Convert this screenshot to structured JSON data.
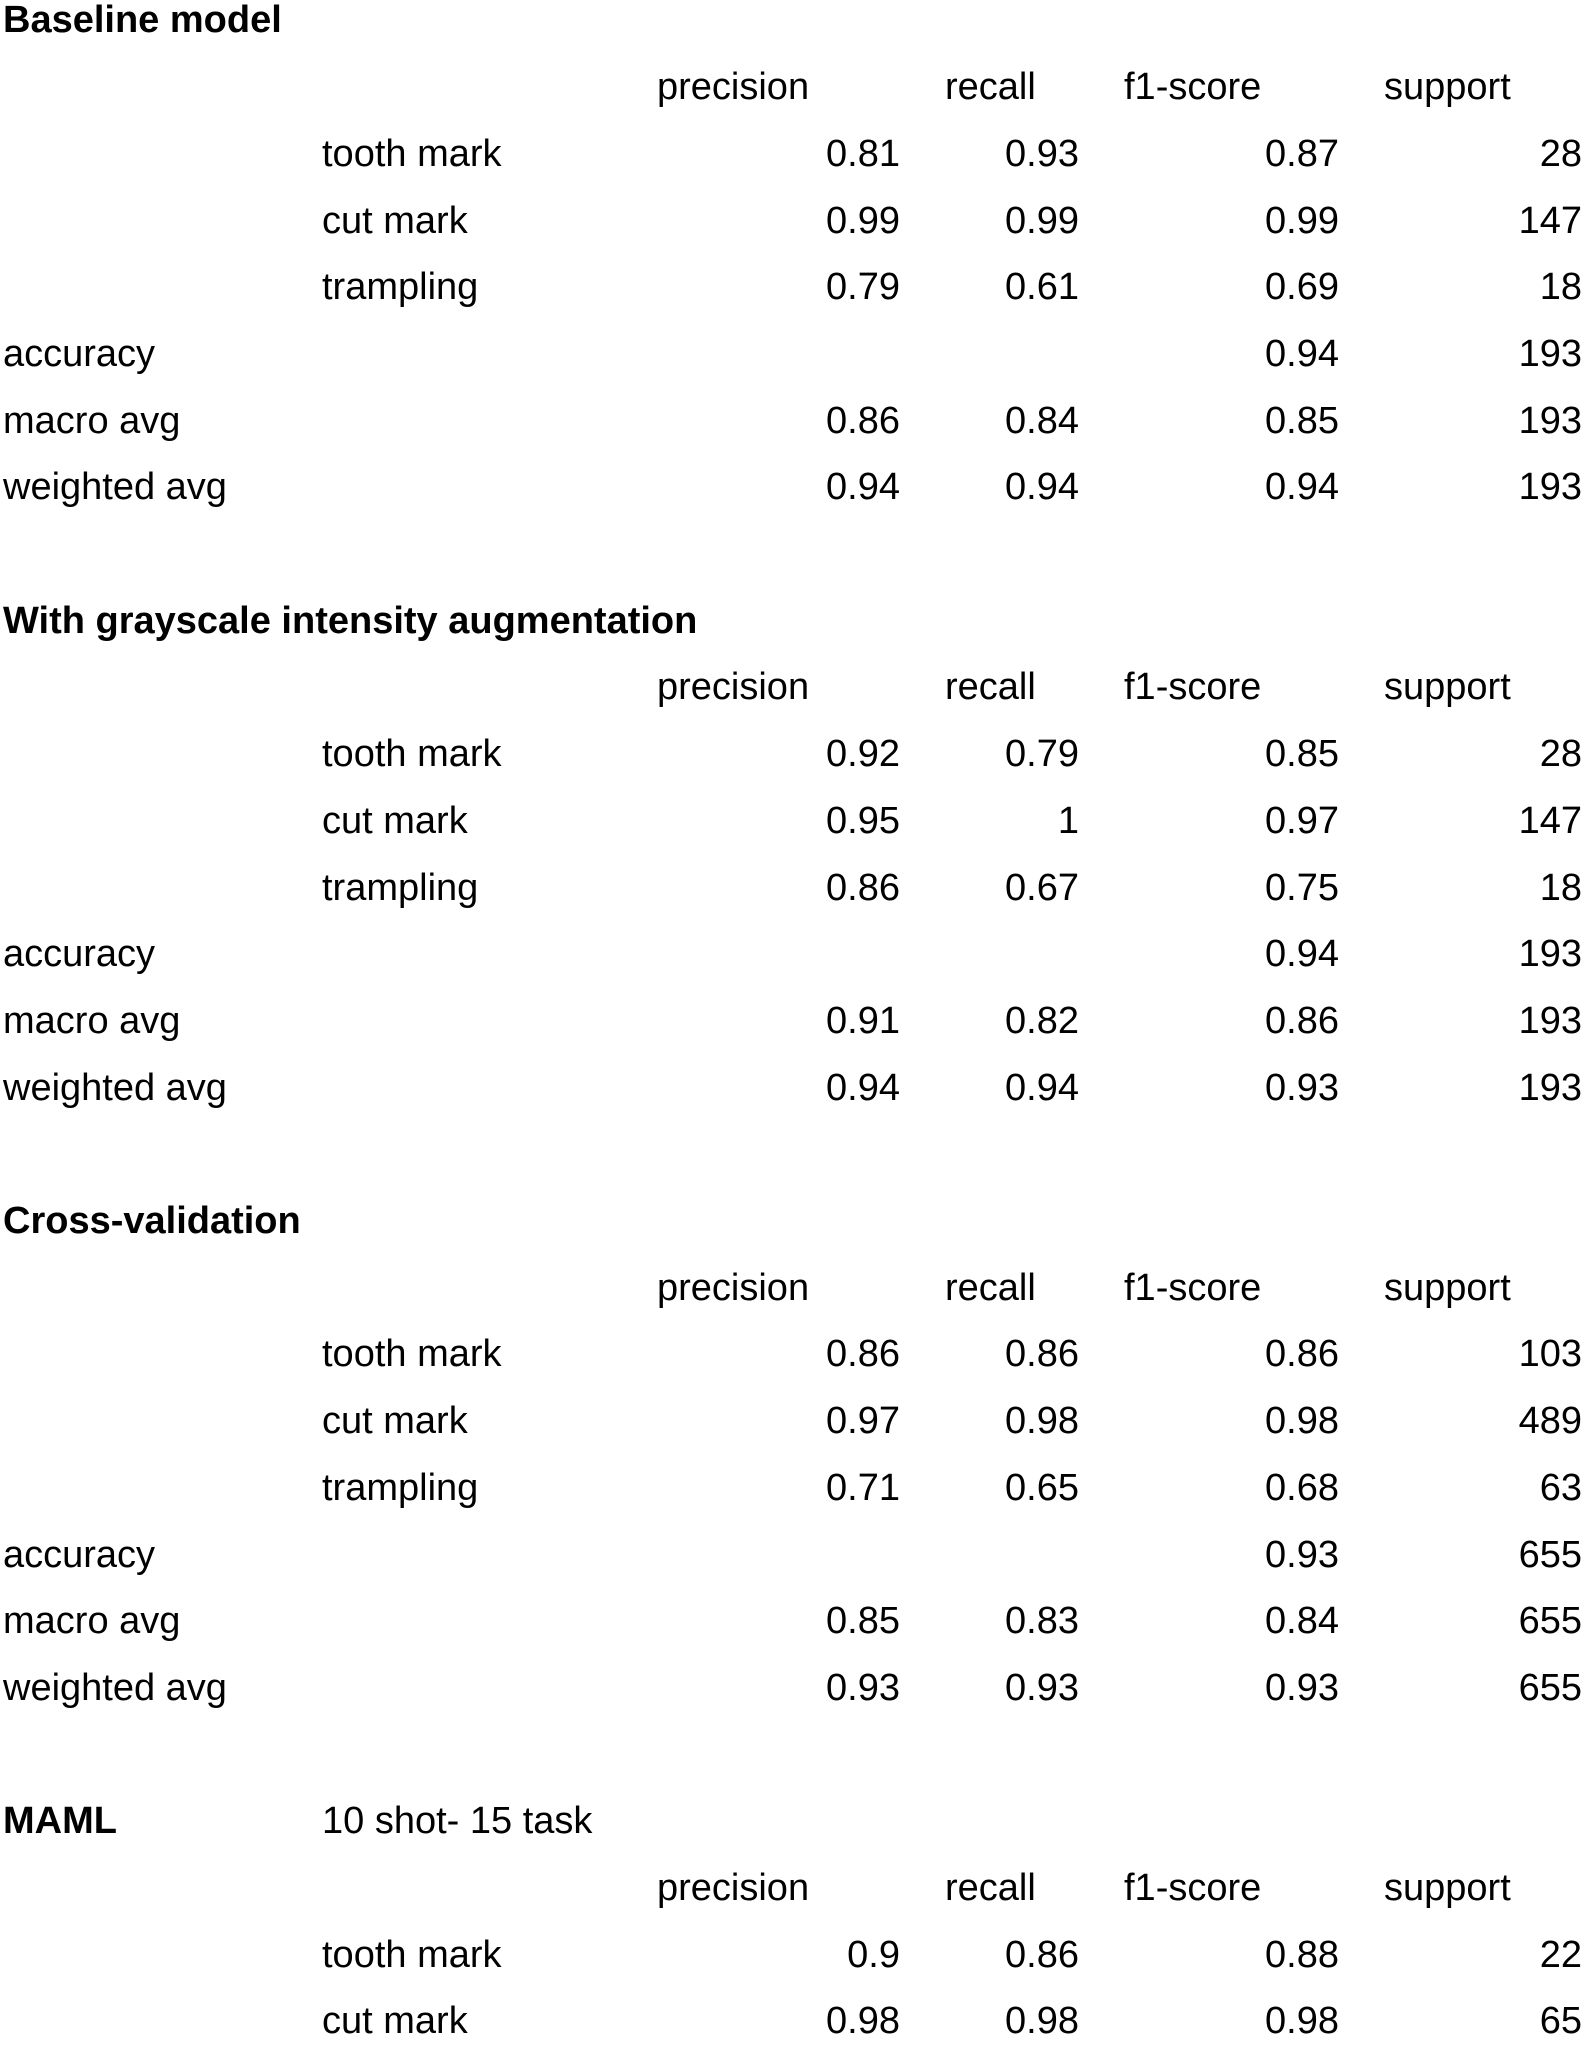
{
  "sections": [
    {
      "title": "Baseline model",
      "header": [
        "precision",
        "recall",
        "f1-score",
        "support"
      ],
      "classes": [
        {
          "label": "tooth mark",
          "precision": "0.81",
          "recall": "0.93",
          "f1": "0.87",
          "support": "28"
        },
        {
          "label": "cut mark",
          "precision": "0.99",
          "recall": "0.99",
          "f1": "0.99",
          "support": "147"
        },
        {
          "label": "trampling",
          "precision": "0.79",
          "recall": "0.61",
          "f1": "0.69",
          "support": "18"
        }
      ],
      "summary": [
        {
          "label": "accuracy",
          "f1": "0.94",
          "support": "193"
        },
        {
          "label": "macro avg",
          "precision": "0.86",
          "recall": "0.84",
          "f1": "0.85",
          "support": "193"
        },
        {
          "label": "weighted avg",
          "precision": "0.94",
          "recall": "0.94",
          "f1": "0.94",
          "support": "193"
        }
      ]
    },
    {
      "title": "With grayscale intensity augmentation",
      "header": [
        "precision",
        "recall",
        "f1-score",
        "support"
      ],
      "classes": [
        {
          "label": "tooth mark",
          "precision": "0.92",
          "recall": "0.79",
          "f1": "0.85",
          "support": "28"
        },
        {
          "label": "cut mark",
          "precision": "0.95",
          "recall": "1",
          "f1": "0.97",
          "support": "147"
        },
        {
          "label": "trampling",
          "precision": "0.86",
          "recall": "0.67",
          "f1": "0.75",
          "support": "18"
        }
      ],
      "summary": [
        {
          "label": "accuracy",
          "f1": "0.94",
          "support": "193"
        },
        {
          "label": "macro avg",
          "precision": "0.91",
          "recall": "0.82",
          "f1": "0.86",
          "support": "193"
        },
        {
          "label": "weighted avg",
          "precision": "0.94",
          "recall": "0.94",
          "f1": "0.93",
          "support": "193"
        }
      ]
    },
    {
      "title": "Cross-validation",
      "header": [
        "precision",
        "recall",
        "f1-score",
        "support"
      ],
      "classes": [
        {
          "label": "tooth mark",
          "precision": "0.86",
          "recall": "0.86",
          "f1": "0.86",
          "support": "103"
        },
        {
          "label": "cut mark",
          "precision": "0.97",
          "recall": "0.98",
          "f1": "0.98",
          "support": "489"
        },
        {
          "label": "trampling",
          "precision": "0.71",
          "recall": "0.65",
          "f1": "0.68",
          "support": "63"
        }
      ],
      "summary": [
        {
          "label": "accuracy",
          "f1": "0.93",
          "support": "655"
        },
        {
          "label": "macro avg",
          "precision": "0.85",
          "recall": "0.83",
          "f1": "0.84",
          "support": "655"
        },
        {
          "label": "weighted avg",
          "precision": "0.93",
          "recall": "0.93",
          "f1": "0.93",
          "support": "655"
        }
      ]
    },
    {
      "title": "MAML",
      "subtitle": "10 shot- 15 task",
      "header": [
        "precision",
        "recall",
        "f1-score",
        "support"
      ],
      "classes": [
        {
          "label": "tooth mark",
          "precision": "0.9",
          "recall": "0.86",
          "f1": "0.88",
          "support": "22"
        },
        {
          "label": "cut mark",
          "precision": "0.98",
          "recall": "0.98",
          "f1": "0.98",
          "support": "65"
        }
      ],
      "summary": []
    }
  ]
}
